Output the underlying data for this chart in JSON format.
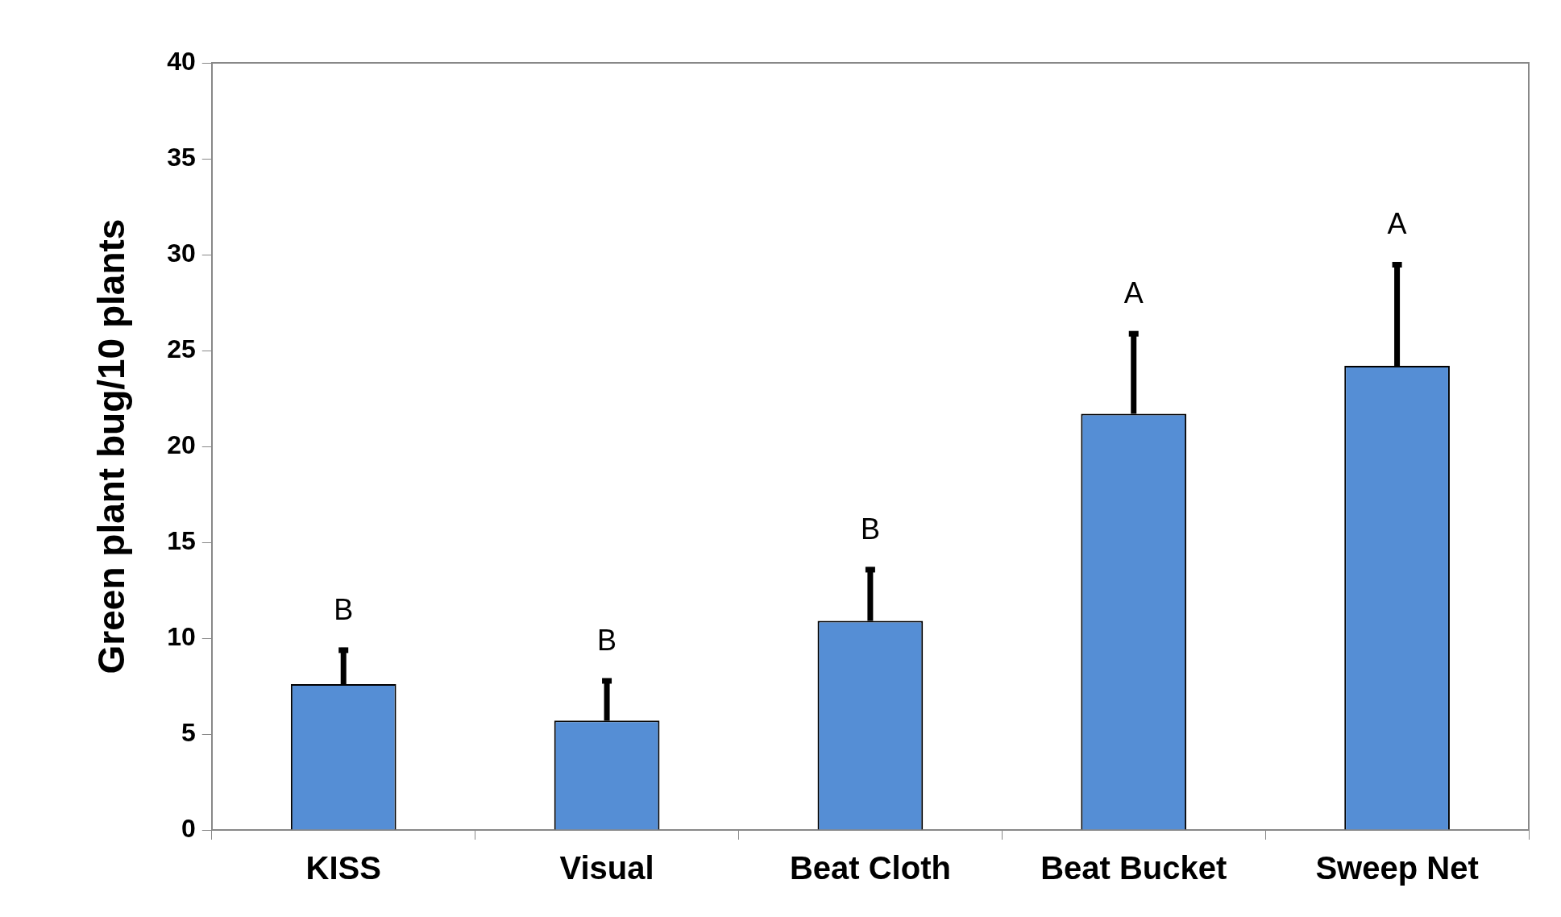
{
  "chart_data": {
    "type": "bar",
    "ylabel": "Green plant bug/10 plants",
    "categories": [
      "KISS",
      "Visual",
      "Beat Cloth",
      "Beat Bucket",
      "Sweep Net"
    ],
    "values": [
      7.6,
      5.7,
      10.9,
      21.7,
      24.2
    ],
    "errors": [
      [
        7.6,
        9.5
      ],
      [
        5.7,
        7.9
      ],
      [
        10.9,
        13.7
      ],
      [
        21.7,
        26.0
      ],
      [
        24.2,
        29.6
      ]
    ],
    "color": "#558ed5",
    "ylim": [
      0,
      40
    ],
    "yticks": [
      0,
      5,
      10,
      15,
      20,
      25,
      30,
      35,
      40
    ],
    "grid": false,
    "legend": false,
    "annotations": [
      "B",
      "B",
      "B",
      "A",
      "A"
    ]
  }
}
